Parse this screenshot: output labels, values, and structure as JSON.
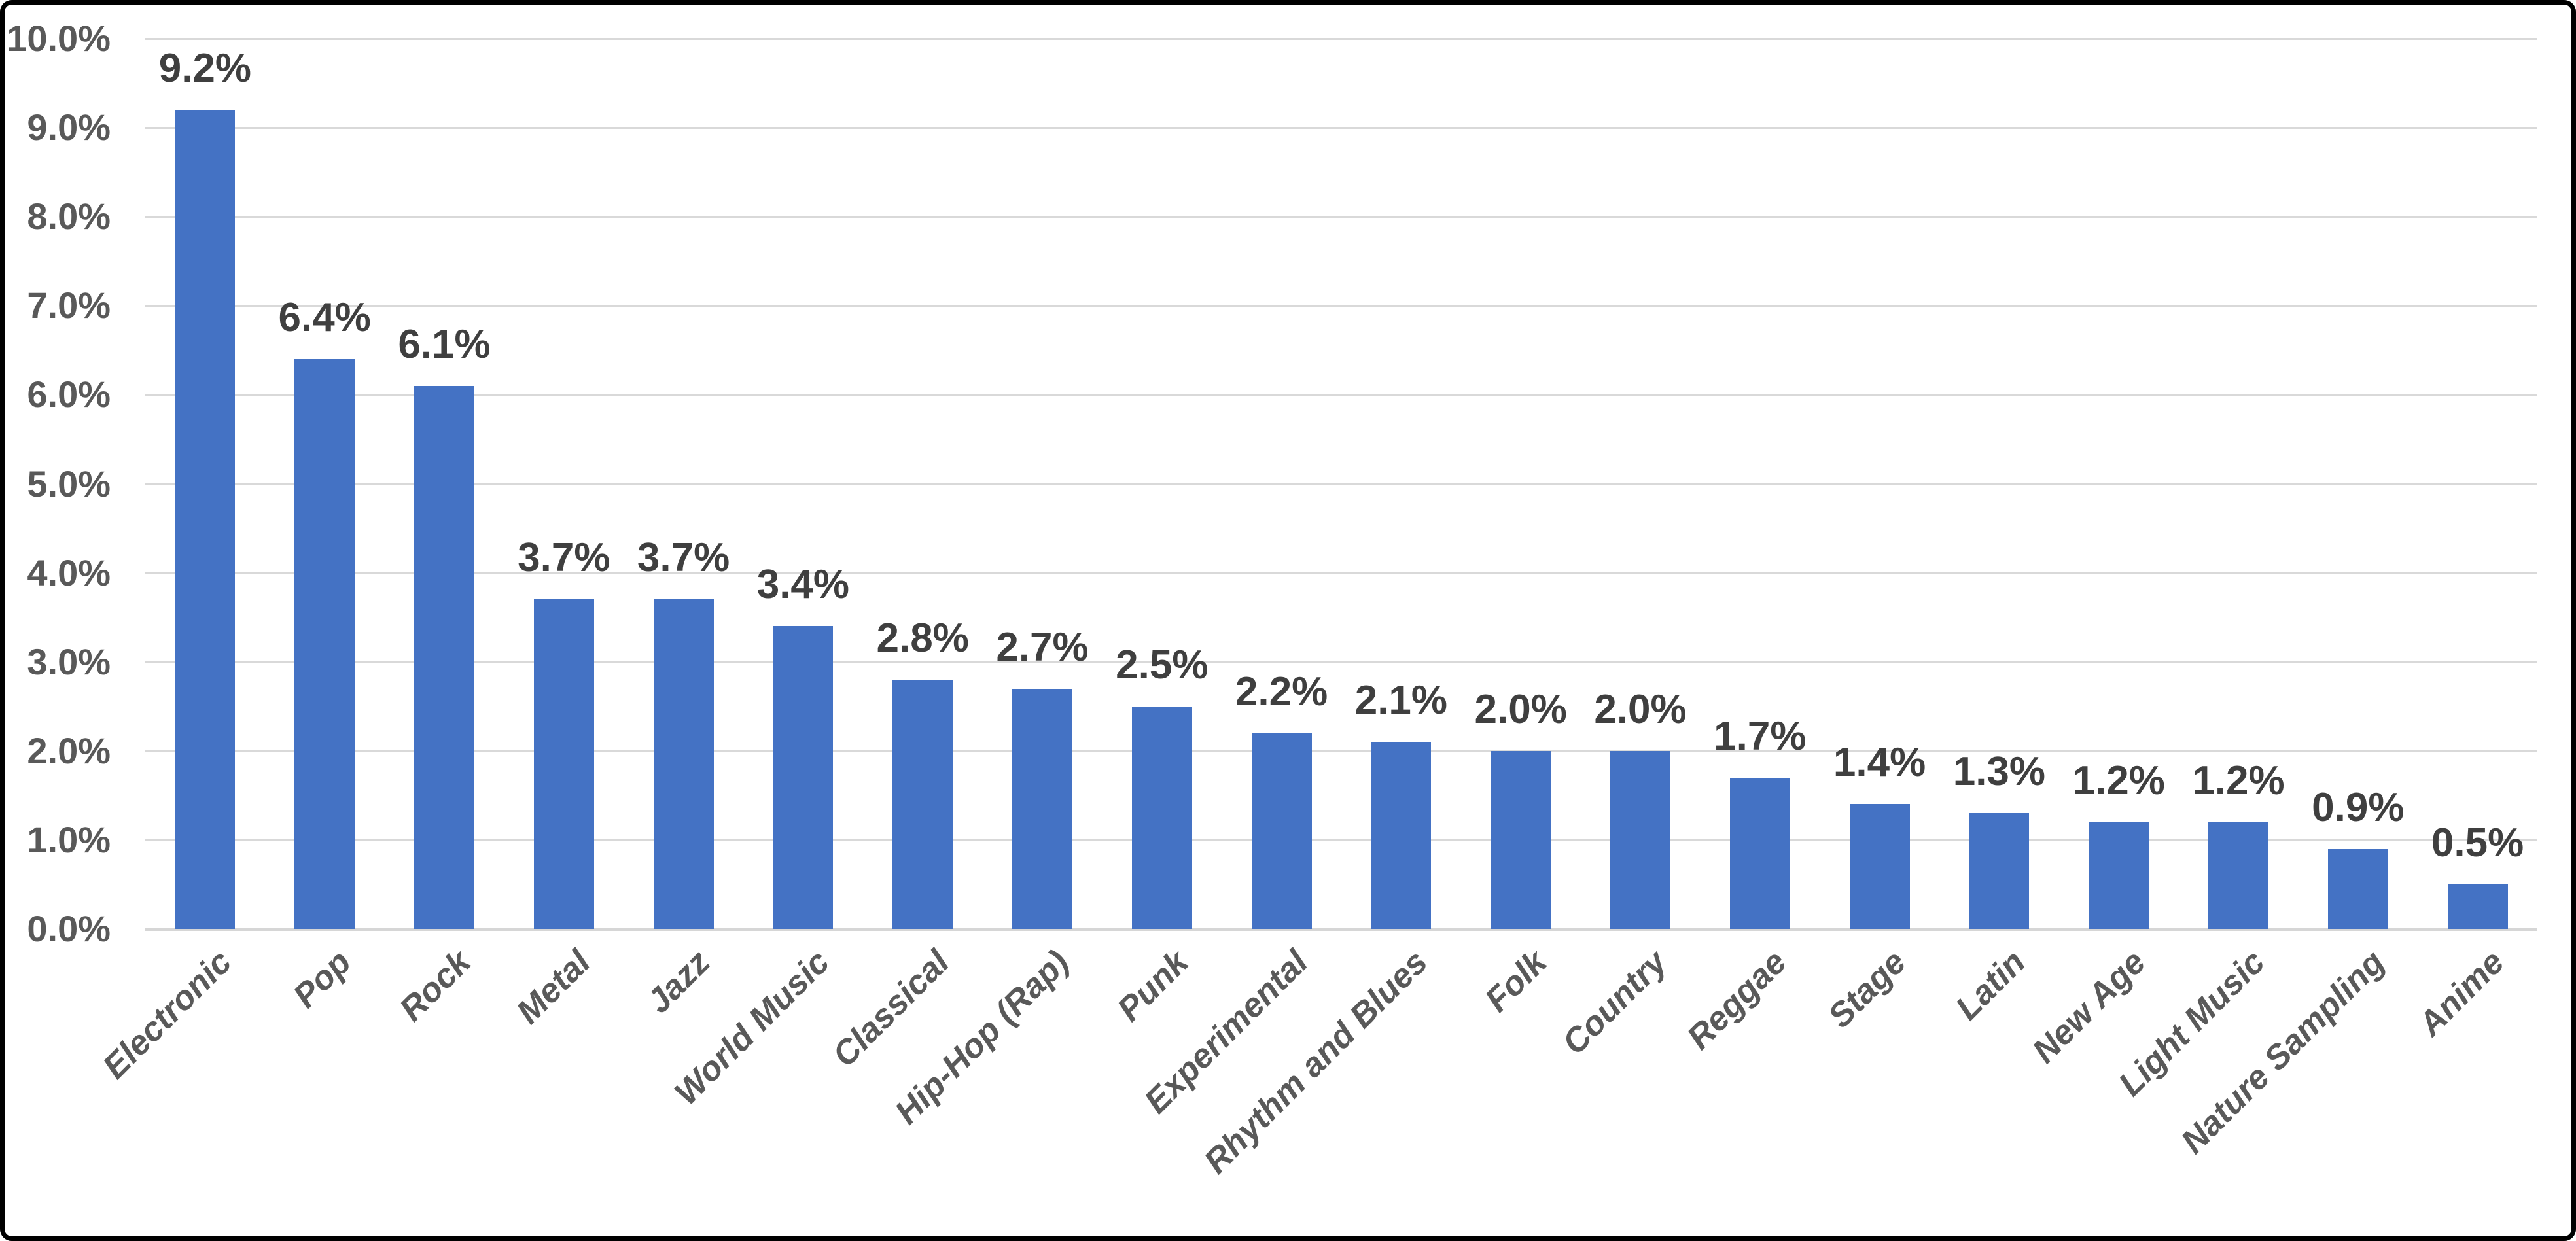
{
  "chart_data": {
    "type": "bar",
    "title": "",
    "xlabel": "",
    "ylabel": "",
    "categories": [
      "Electronic",
      "Pop",
      "Rock",
      "Metal",
      "Jazz",
      "World Music",
      "Classical",
      "Hip-Hop (Rap)",
      "Punk",
      "Experimental",
      "Rhythm and Blues",
      "Folk",
      "Country",
      "Reggae",
      "Stage",
      "Latin",
      "New Age",
      "Light Music",
      "Nature Sampling",
      "Anime"
    ],
    "values": [
      9.2,
      6.4,
      6.1,
      3.7,
      3.7,
      3.4,
      2.8,
      2.7,
      2.5,
      2.2,
      2.1,
      2.0,
      2.0,
      1.7,
      1.4,
      1.3,
      1.2,
      1.2,
      0.9,
      0.5
    ],
    "data_labels": [
      "9.2%",
      "6.4%",
      "6.1%",
      "3.7%",
      "3.7%",
      "3.4%",
      "2.8%",
      "2.7%",
      "2.5%",
      "2.2%",
      "2.1%",
      "2.0%",
      "2.0%",
      "1.7%",
      "1.4%",
      "1.3%",
      "1.2%",
      "1.2%",
      "0.9%",
      "0.5%"
    ],
    "ylim": [
      0,
      10
    ],
    "ytick_step": 1,
    "ytick_labels": [
      "0.0%",
      "1.0%",
      "2.0%",
      "3.0%",
      "4.0%",
      "5.0%",
      "6.0%",
      "7.0%",
      "8.0%",
      "9.0%",
      "10.0%"
    ],
    "grid": true,
    "legend": false,
    "category_label_rotation_deg": -45,
    "colors": {
      "bar_fill": "#4472C4",
      "gridline": "#D9D9D9",
      "axis_baseline": "#D6D6D6",
      "axis_text": "#595959",
      "data_label_text": "#3F3F3F",
      "background": "#FFFFFF",
      "frame_border": "#000000"
    }
  }
}
